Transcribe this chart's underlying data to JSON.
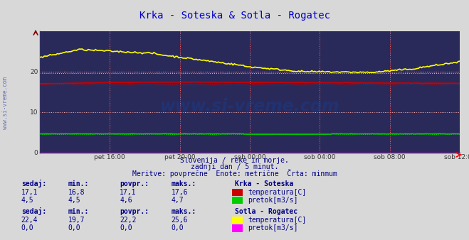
{
  "title": "Krka - Soteska & Sotla - Rogatec",
  "title_color": "#0000cc",
  "bg_color": "#d8d8d8",
  "plot_bg_color": "#2a2a5a",
  "xticklabels": [
    "pet 16:00",
    "pet 20:00",
    "sob 00:00",
    "sob 04:00",
    "sob 08:00",
    "sob 12:00"
  ],
  "yticks": [
    0,
    10,
    20
  ],
  "ymax": 30,
  "ymin": 0,
  "n_points": 288,
  "krka_temp_min": 16.8,
  "krka_temp_max": 17.6,
  "krka_temp_avg": 17.1,
  "krka_temp_sedaj": 17.1,
  "krka_pretok_min": 4.5,
  "krka_pretok_max": 4.7,
  "krka_pretok_avg": 4.6,
  "krka_pretok_sedaj": 4.5,
  "sotla_temp_min": 19.7,
  "sotla_temp_max": 25.6,
  "sotla_temp_avg": 22.2,
  "sotla_temp_sedaj": 22.4,
  "sotla_pretok_min": 0.0,
  "sotla_pretok_max": 0.0,
  "sotla_pretok_avg": 0.0,
  "sotla_pretok_sedaj": 0.0,
  "color_krka_temp": "#cc0000",
  "color_krka_pretok": "#00cc00",
  "color_sotla_temp": "#ffff00",
  "color_sotla_pretok": "#ff00ff",
  "color_grid_v": "#ff6666",
  "color_grid_h": "#ffaaaa",
  "color_min_krka_temp": "#cc0000",
  "color_min_sotla_temp": "#cccc00",
  "color_min_krka_pretok": "#00cc00",
  "subtitle1": "Slovenija / reke in morje.",
  "subtitle2": "zadnji dan / 5 minut.",
  "subtitle3": "Meritve: povprečne  Enote: metrične  Črta: minmum",
  "subtitle_color": "#000088",
  "label_color": "#000088",
  "krka_label": "Krka - Soteska",
  "sotla_label": "Sotla - Rogatec",
  "legend_krka_temp": "temperatura[C]",
  "legend_krka_pretok": "pretok[m3/s]",
  "legend_sotla_temp": "temperatura[C]",
  "legend_sotla_pretok": "pretok[m3/s]",
  "watermark": "www.si-vreme.com",
  "watermark_color": "#1a3a8a",
  "side_watermark": "www.si-vreme.com",
  "side_watermark_color": "#4455aa"
}
